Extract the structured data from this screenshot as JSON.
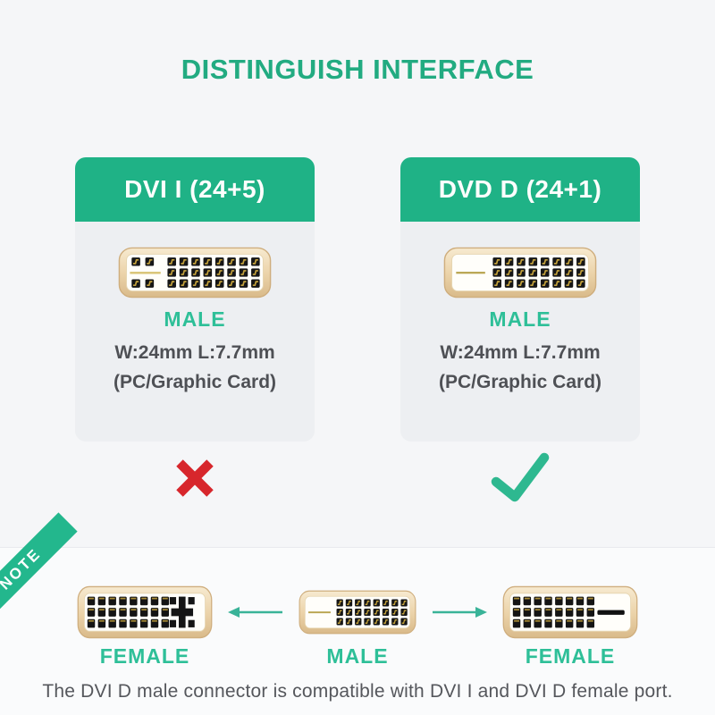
{
  "title": "DISTINGUISH INTERFACE",
  "colors": {
    "accent_green": "#1fb286",
    "label_green": "#2ebf98",
    "error_red": "#d7262c",
    "check_green": "#2eb890",
    "arrow_teal": "#39b398",
    "connector_gold": "#d9ba8a",
    "card_body_gray": "#edeff2",
    "text_dark": "#4e5055"
  },
  "cards": [
    {
      "header": "DVI I (24+5)",
      "connector_type": "dvi-i-male",
      "gender_label": "MALE",
      "dimensions": "W:24mm L:7.7mm",
      "usage": "(PC/Graphic Card)",
      "verdict": "incompatible"
    },
    {
      "header": "DVD D (24+1)",
      "connector_type": "dvi-d-male",
      "gender_label": "MALE",
      "dimensions": "W:24mm L:7.7mm",
      "usage": "(PC/Graphic Card)",
      "verdict": "compatible"
    }
  ],
  "note": {
    "ribbon_label": "NOTE",
    "connectors": [
      {
        "type": "dvi-i-female",
        "label": "FEMALE"
      },
      {
        "type": "dvi-d-male",
        "label": "MALE"
      },
      {
        "type": "dvi-d-female",
        "label": "FEMALE"
      }
    ],
    "caption": "The DVI D male connector is compatible with DVI I and DVI D female port."
  }
}
